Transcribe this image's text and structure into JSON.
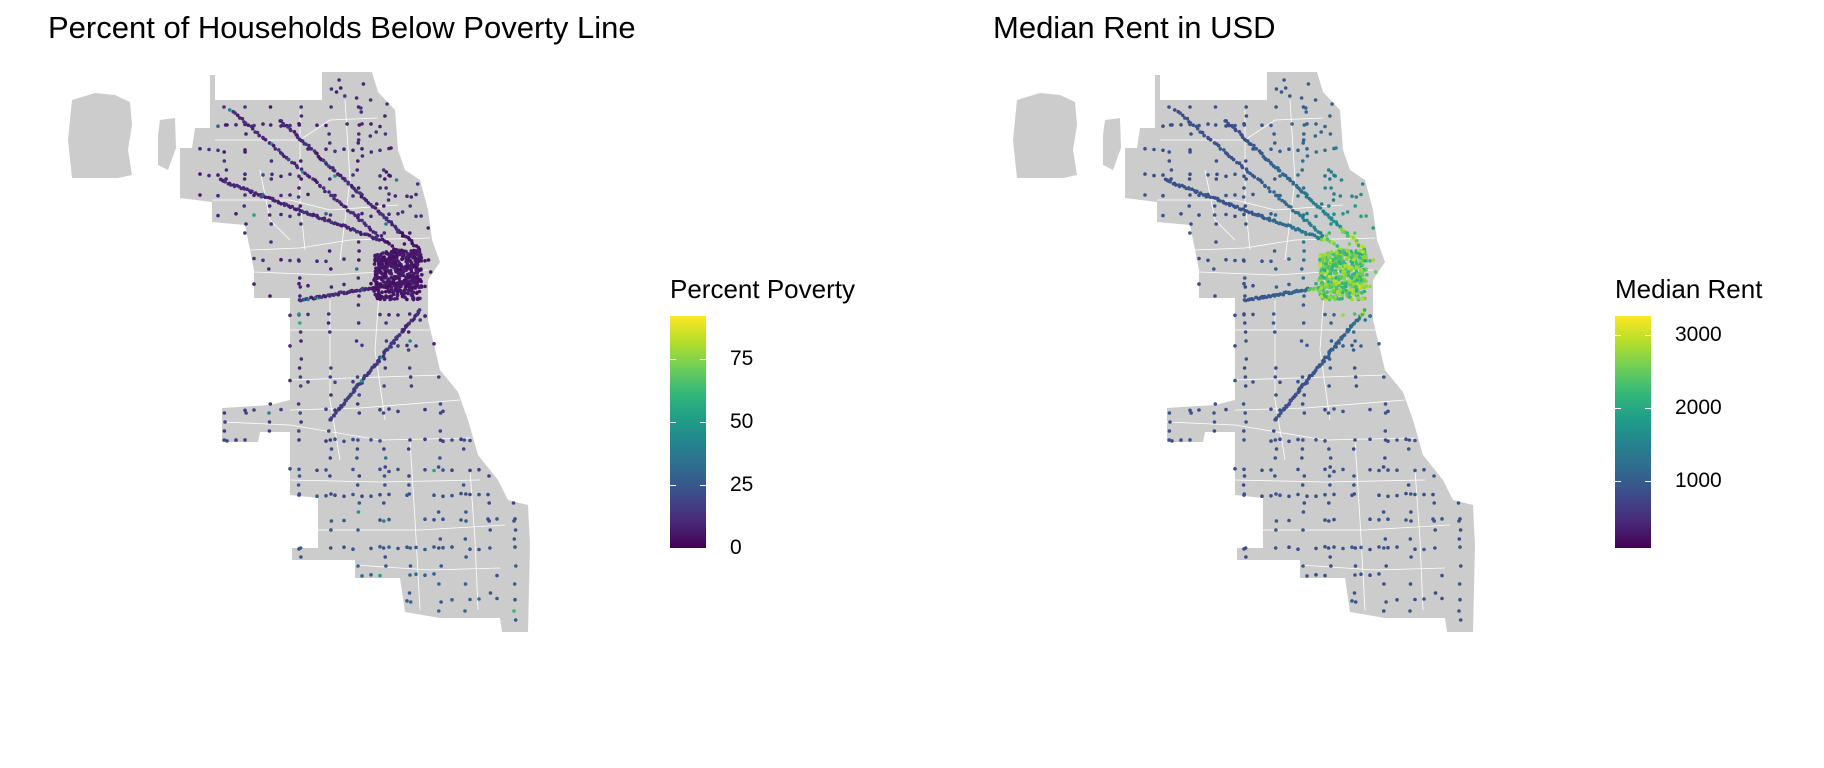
{
  "panels": [
    {
      "title": "Percent of Households Below Poverty Line",
      "legend_title": "Percent Poverty",
      "legend_ticks": [
        "0",
        "25",
        "50",
        "75"
      ],
      "legend_tick_values": [
        0,
        25,
        50,
        75
      ],
      "scale_min": 0,
      "scale_max": 92,
      "palette": "viridis"
    },
    {
      "title": "Median Rent in USD",
      "legend_title": "Median Rent",
      "legend_ticks": [
        "1000",
        "2000",
        "3000"
      ],
      "legend_tick_values": [
        1000,
        2000,
        3000
      ],
      "scale_min": 90,
      "scale_max": 3260,
      "palette": "viridis"
    }
  ],
  "colors": {
    "land": "#cccccc",
    "boundaries": "#ffffff",
    "viridis": [
      "#440154",
      "#482878",
      "#3e4a89",
      "#31688e",
      "#26828e",
      "#1f9e89",
      "#35b779",
      "#6ece58",
      "#b5de2b",
      "#fde725"
    ]
  }
}
